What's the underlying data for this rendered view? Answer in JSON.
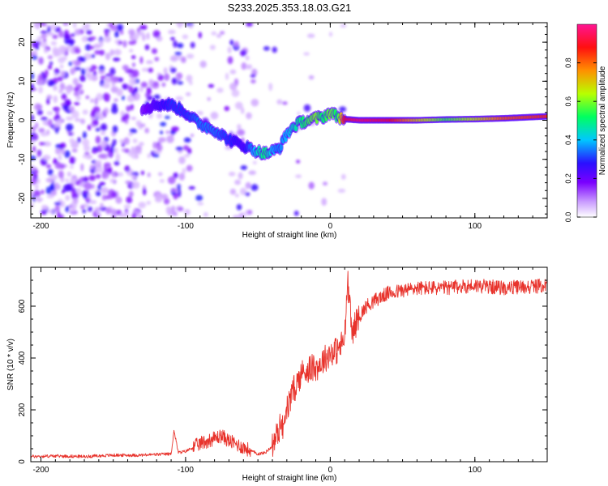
{
  "title": "S233.2025.353.18.03.G21",
  "colors": {
    "snr_line": "#e8332c",
    "axis": "#000000",
    "colormap": [
      "#ffffff",
      "#8f00ff",
      "#3a00ff",
      "#0040ff",
      "#00e5ff",
      "#00ff40",
      "#d8ff00",
      "#ff8c00",
      "#ff0000",
      "#ff1493"
    ]
  },
  "chart_data": [
    {
      "type": "heatmap",
      "name": "spectrogram",
      "title": "S233.2025.353.18.03.G21",
      "xlabel": "Height of straight line (km)",
      "ylabel": "Frequency (Hz)",
      "xlim": [
        -207,
        150
      ],
      "ylim": [
        -25,
        25
      ],
      "xticks": [
        -200,
        -100,
        0,
        100
      ],
      "yticks": [
        -20,
        -10,
        0,
        10,
        20
      ],
      "colorbar": {
        "label": "Normalized spectral amplitude",
        "range": [
          0.0,
          1.0
        ],
        "ticks": [
          "0.0",
          "0.2",
          "0.4",
          "0.6",
          "0.8"
        ]
      },
      "ridge": {
        "x": [
          -130,
          -120,
          -110,
          -100,
          -90,
          -80,
          -70,
          -60,
          -50,
          -45,
          -40,
          -35,
          -30,
          -25,
          -20,
          -15,
          -10,
          -5,
          0,
          5,
          10,
          20,
          40,
          60,
          80,
          100,
          120,
          150
        ],
        "y": [
          3,
          4,
          4,
          2,
          -1,
          -2.5,
          -5,
          -6.5,
          -8,
          -8.5,
          -8,
          -7,
          -3.5,
          -1.5,
          -0.5,
          0,
          0.5,
          0.8,
          2,
          1,
          0.3,
          0,
          0,
          0,
          0.2,
          0.3,
          0.5,
          1
        ],
        "amplitude": [
          0.15,
          0.25,
          0.3,
          0.3,
          0.35,
          0.35,
          0.3,
          0.25,
          0.45,
          0.5,
          0.4,
          0.35,
          0.4,
          0.45,
          0.5,
          0.55,
          0.6,
          0.5,
          0.6,
          0.5,
          0.9,
          0.95,
          0.9,
          0.7,
          0.55,
          0.65,
          0.8,
          0.85
        ]
      }
    },
    {
      "type": "line",
      "name": "snr",
      "xlabel": "Height of straight line (km)",
      "ylabel": "SNR (10 * v/v)",
      "xlim": [
        -207,
        150
      ],
      "ylim": [
        0,
        750
      ],
      "xticks": [
        -200,
        -100,
        0,
        100
      ],
      "yticks": [
        0,
        200,
        400,
        600
      ],
      "x": [
        -207,
        -190,
        -170,
        -150,
        -130,
        -120,
        -110,
        -108,
        -105,
        -100,
        -90,
        -80,
        -75,
        -70,
        -60,
        -50,
        -45,
        -40,
        -35,
        -30,
        -25,
        -20,
        -15,
        -10,
        -5,
        0,
        5,
        10,
        12,
        15,
        20,
        25,
        30,
        40,
        50,
        60,
        80,
        100,
        120,
        150
      ],
      "y": [
        20,
        22,
        20,
        25,
        25,
        28,
        30,
        120,
        35,
        40,
        70,
        90,
        100,
        80,
        55,
        30,
        35,
        60,
        130,
        200,
        280,
        340,
        360,
        360,
        390,
        420,
        430,
        470,
        700,
        500,
        560,
        600,
        620,
        650,
        660,
        670,
        670,
        680,
        670,
        680
      ]
    }
  ]
}
